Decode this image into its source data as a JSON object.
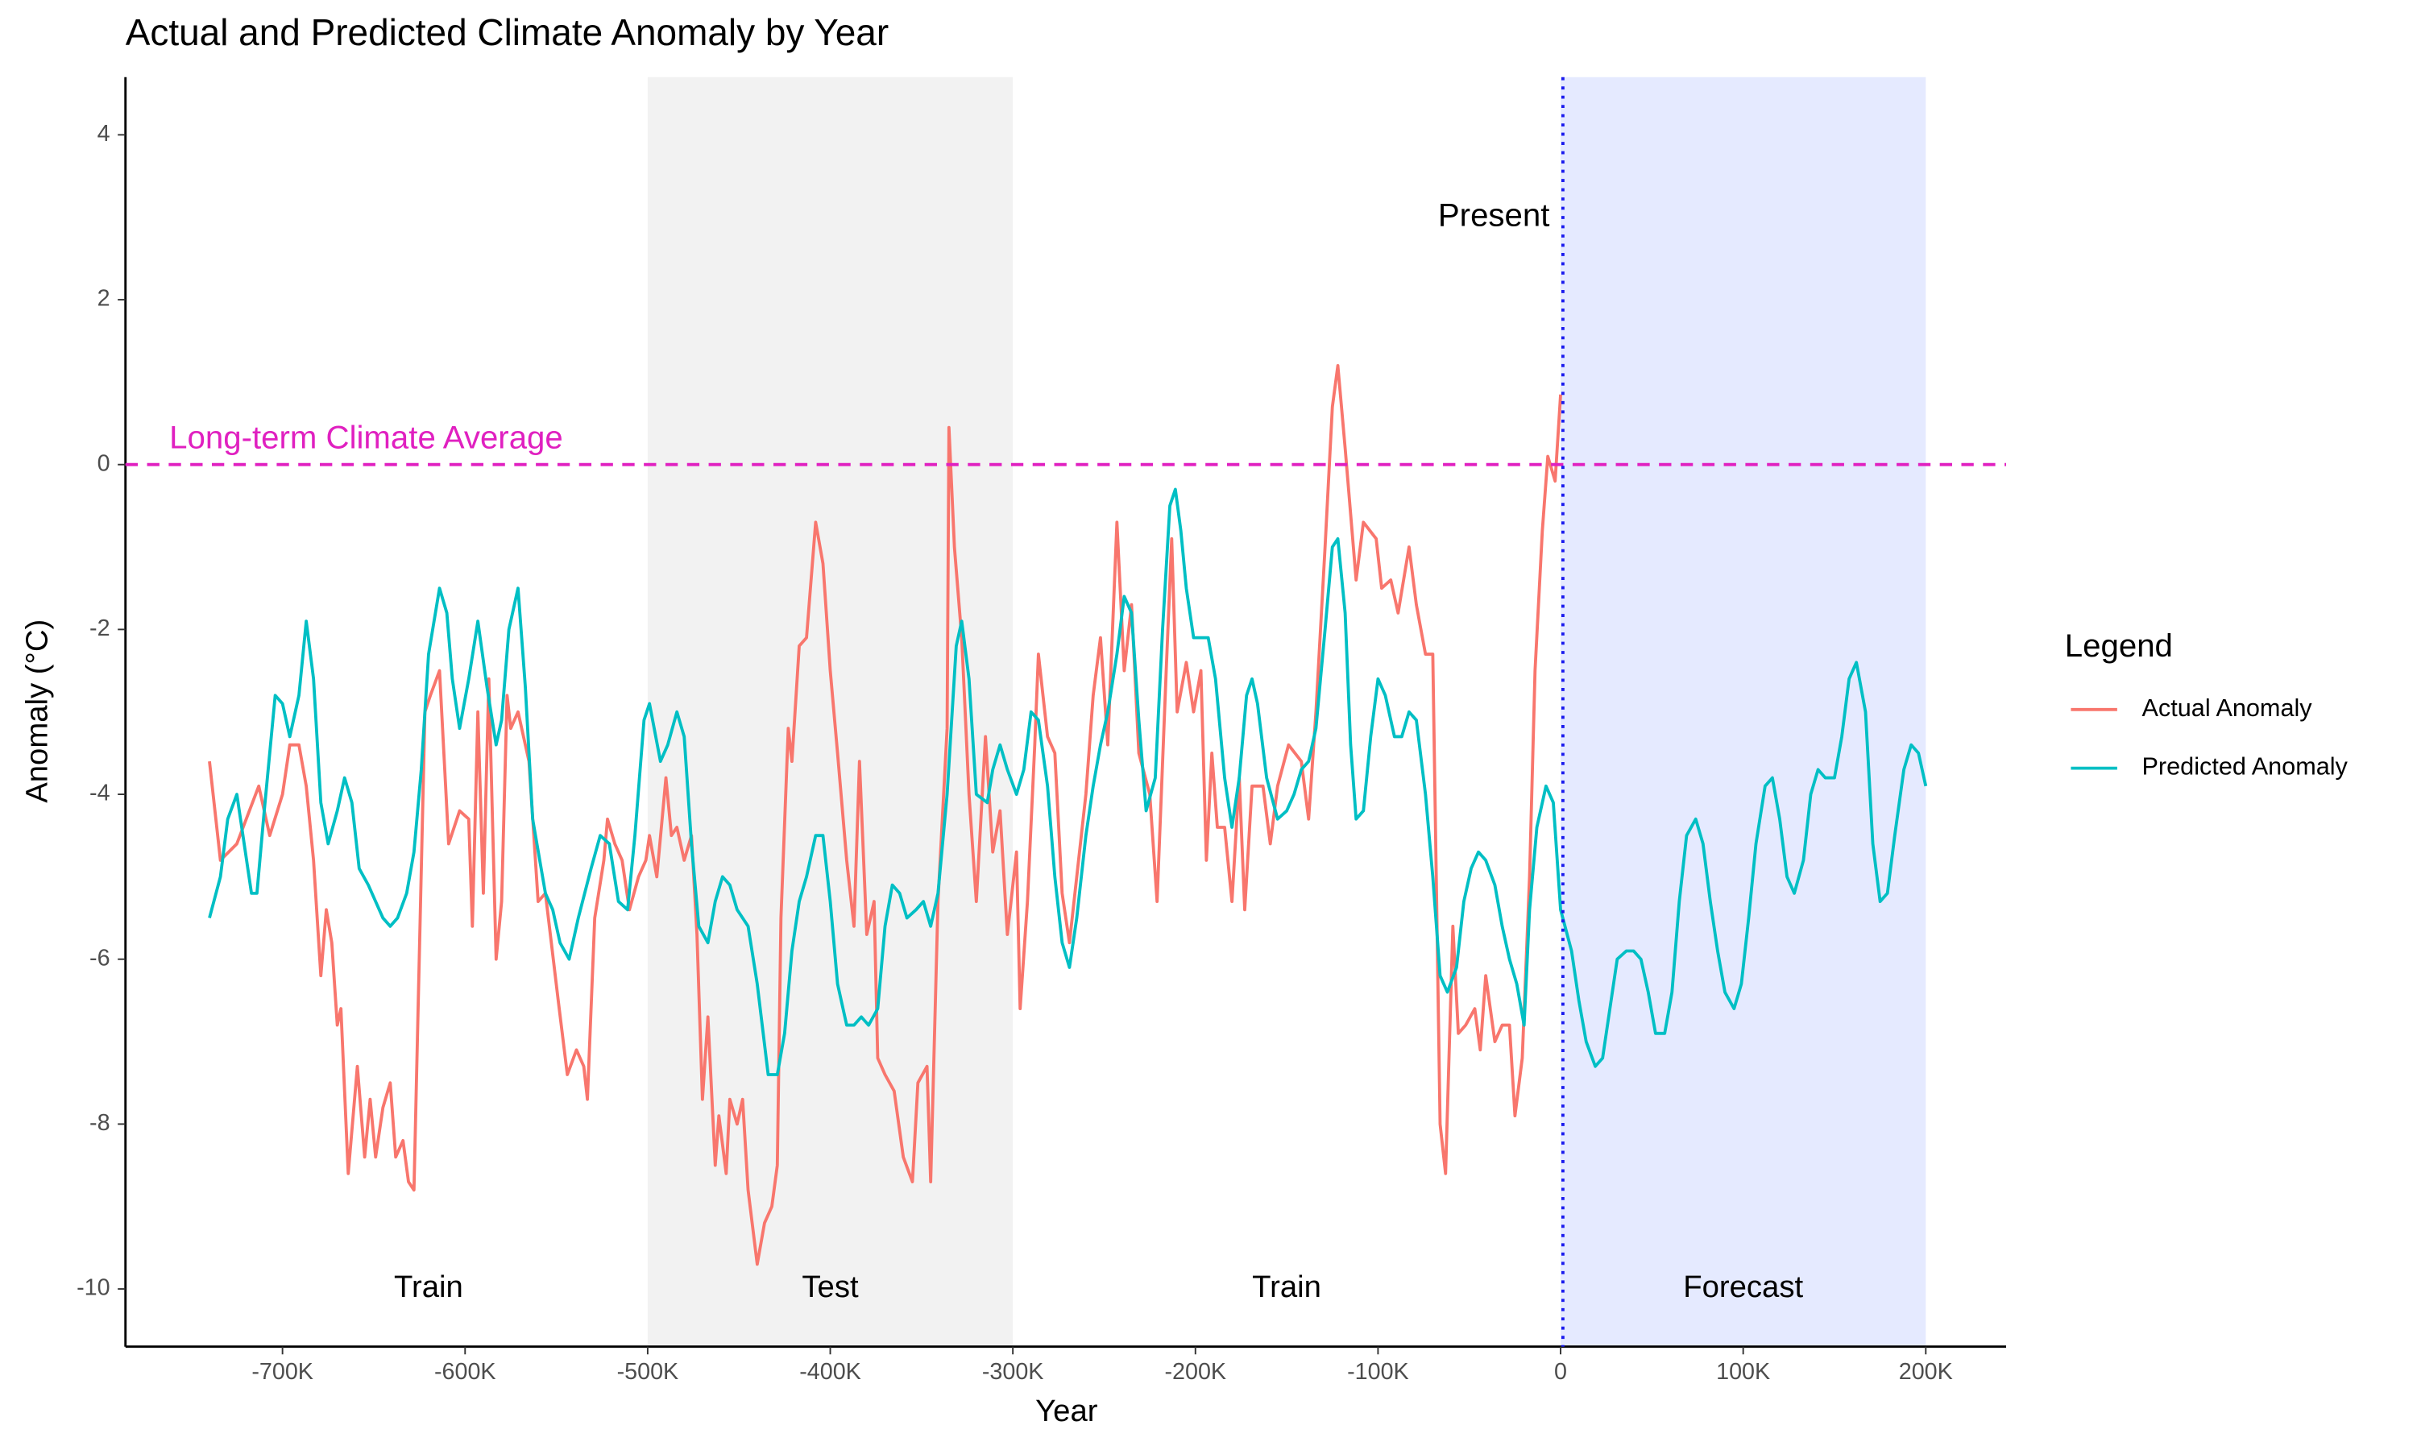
{
  "chart_data": {
    "type": "line",
    "title": "Actual and Predicted Climate Anomaly by Year",
    "x_label": "Year",
    "y_label": "Anomaly (°C)",
    "xlim": [
      -786000,
      244000
    ],
    "ylim": [
      -10.7,
      4.7
    ],
    "xticks": [
      {
        "value": -700000,
        "label": "-700K"
      },
      {
        "value": -600000,
        "label": "-600K"
      },
      {
        "value": -500000,
        "label": "-500K"
      },
      {
        "value": -400000,
        "label": "-400K"
      },
      {
        "value": -300000,
        "label": "-300K"
      },
      {
        "value": -200000,
        "label": "-200K"
      },
      {
        "value": -100000,
        "label": "-100K"
      },
      0,
      {
        "value": 100000,
        "label": "100K"
      },
      {
        "value": 200000,
        "label": "200K"
      }
    ],
    "yticks": [
      -10,
      -8,
      -6,
      -4,
      -2,
      0,
      2,
      4
    ],
    "grid": false,
    "legend": {
      "title": "Legend",
      "position": "right"
    },
    "spans": [
      {
        "from": -500000,
        "to": -300000,
        "color": "#f2f2f2"
      },
      {
        "from": 0,
        "to": 200000,
        "color": "#e5eaff"
      }
    ],
    "hline": {
      "y": 0,
      "color": "#e020c0",
      "label": "Long-term Climate Average",
      "label_x": -762000,
      "label_y": 0.3
    },
    "vline": {
      "x": 0,
      "color": "#1a1aee",
      "label": "Present",
      "label_x": -6000,
      "label_y": 3.0
    },
    "annotations": [
      {
        "text": "Train",
        "x": -620000,
        "y": -10
      },
      {
        "text": "Test",
        "x": -400000,
        "y": -10
      },
      {
        "text": "Train",
        "x": -150000,
        "y": -10
      },
      {
        "text": "Forecast",
        "x": 100000,
        "y": -10
      }
    ],
    "series": [
      {
        "name": "Actual Anomaly",
        "color": "#F8766D",
        "x": [
          -740000,
          -734000,
          -725000,
          -713000,
          -707000,
          -700000,
          -696000,
          -691000,
          -687000,
          -683000,
          -679000,
          -676000,
          -673000,
          -670000,
          -668000,
          -664000,
          -659000,
          -655000,
          -652000,
          -649000,
          -645000,
          -641000,
          -638000,
          -634000,
          -631000,
          -628000,
          -622000,
          -619000,
          -614000,
          -609000,
          -603000,
          -598000,
          -596000,
          -593000,
          -590000,
          -587000,
          -583000,
          -580000,
          -577000,
          -575000,
          -571000,
          -565000,
          -560000,
          -556000,
          -549000,
          -544000,
          -539000,
          -535000,
          -533000,
          -529000,
          -524000,
          -522000,
          -518000,
          -514000,
          -510000,
          -505000,
          -501000,
          -499000,
          -495000,
          -490000,
          -487000,
          -484000,
          -480000,
          -476000,
          -473000,
          -470000,
          -467000,
          -463000,
          -461000,
          -457000,
          -455000,
          -451000,
          -448000,
          -445000,
          -440000,
          -436000,
          -432000,
          -429000,
          -427000,
          -423000,
          -421000,
          -417000,
          -413000,
          -408000,
          -404000,
          -400000,
          -396000,
          -391000,
          -387000,
          -384000,
          -380000,
          -376000,
          -374000,
          -370000,
          -365000,
          -360000,
          -355000,
          -352000,
          -347000,
          -345000,
          -341000,
          -336000,
          -335000,
          -332000,
          -328000,
          -324000,
          -320000,
          -315000,
          -311000,
          -307000,
          -303000,
          -298000,
          -296000,
          -292000,
          -288000,
          -286000,
          -281000,
          -277000,
          -273000,
          -269000,
          -260000,
          -256000,
          -252000,
          -248000,
          -243000,
          -239000,
          -235000,
          -231000,
          -225000,
          -221000,
          -216000,
          -213000,
          -210000,
          -205000,
          -201000,
          -197000,
          -194000,
          -191000,
          -188000,
          -184000,
          -180000,
          -176000,
          -173000,
          -169000,
          -163000,
          -159000,
          -155000,
          -149000,
          -142000,
          -138000,
          -134000,
          -129000,
          -125000,
          -122000,
          -118000,
          -115000,
          -112000,
          -108000,
          -101000,
          -98000,
          -93000,
          -89000,
          -83000,
          -79000,
          -74000,
          -70000,
          -66000,
          -63000,
          -59000,
          -56000,
          -52000,
          -47000,
          -44000,
          -41000,
          -36000,
          -32000,
          -28000,
          -25000,
          -21000,
          -17000,
          -14000,
          -10000,
          -7000,
          -3000,
          0
        ],
        "values": [
          -3.6,
          -4.8,
          -4.6,
          -3.9,
          -4.5,
          -4.0,
          -3.4,
          -3.4,
          -3.9,
          -4.8,
          -6.2,
          -5.4,
          -5.8,
          -6.8,
          -6.6,
          -8.6,
          -7.3,
          -8.4,
          -7.7,
          -8.4,
          -7.8,
          -7.5,
          -8.4,
          -8.2,
          -8.7,
          -8.8,
          -3.0,
          -2.8,
          -2.5,
          -4.6,
          -4.2,
          -4.3,
          -5.6,
          -3.0,
          -5.2,
          -2.6,
          -6.0,
          -5.3,
          -2.8,
          -3.2,
          -3.0,
          -3.6,
          -5.3,
          -5.2,
          -6.5,
          -7.4,
          -7.1,
          -7.3,
          -7.7,
          -5.5,
          -4.8,
          -4.3,
          -4.6,
          -4.8,
          -5.4,
          -5.0,
          -4.8,
          -4.5,
          -5.0,
          -3.8,
          -4.5,
          -4.4,
          -4.8,
          -4.5,
          -5.7,
          -7.7,
          -6.7,
          -8.5,
          -7.9,
          -8.6,
          -7.7,
          -8.0,
          -7.7,
          -8.8,
          -9.7,
          -9.2,
          -9.0,
          -8.5,
          -5.5,
          -3.2,
          -3.6,
          -2.2,
          -2.1,
          -0.7,
          -1.2,
          -2.5,
          -3.5,
          -4.8,
          -5.6,
          -3.6,
          -5.7,
          -5.3,
          -7.2,
          -7.4,
          -7.6,
          -8.4,
          -8.7,
          -7.5,
          -7.3,
          -8.7,
          -5.3,
          -3.2,
          0.45,
          -1.0,
          -2.1,
          -4.0,
          -5.3,
          -3.3,
          -4.7,
          -4.2,
          -5.7,
          -4.7,
          -6.6,
          -5.3,
          -3.4,
          -2.3,
          -3.3,
          -3.5,
          -5.2,
          -5.8,
          -4.0,
          -2.8,
          -2.1,
          -3.4,
          -0.7,
          -2.5,
          -1.7,
          -3.5,
          -4.0,
          -5.3,
          -2.5,
          -0.9,
          -3.0,
          -2.4,
          -3.0,
          -2.5,
          -4.8,
          -3.5,
          -4.4,
          -4.4,
          -5.3,
          -3.8,
          -5.4,
          -3.9,
          -3.9,
          -4.6,
          -3.9,
          -3.4,
          -3.6,
          -4.3,
          -3.0,
          -1.0,
          0.7,
          1.2,
          0.2,
          -0.6,
          -1.4,
          -0.7,
          -0.9,
          -1.5,
          -1.4,
          -1.8,
          -1.0,
          -1.7,
          -2.3,
          -2.3,
          -8.0,
          -8.6,
          -5.6,
          -6.9,
          -6.8,
          -6.6,
          -7.1,
          -6.2,
          -7.0,
          -6.8,
          -6.8,
          -7.9,
          -7.2,
          -5.0,
          -2.5,
          -0.8,
          0.1,
          -0.2,
          0.85
        ]
      },
      {
        "name": "Predicted Anomaly",
        "color": "#00BFC4",
        "x": [
          -740000,
          -734000,
          -730000,
          -725000,
          -721000,
          -717000,
          -714000,
          -710000,
          -704000,
          -700000,
          -696000,
          -691000,
          -687000,
          -683000,
          -679000,
          -675000,
          -670000,
          -666000,
          -662000,
          -658000,
          -653000,
          -649000,
          -645000,
          -641000,
          -637000,
          -632000,
          -628000,
          -624000,
          -620000,
          -614000,
          -610000,
          -607000,
          -603000,
          -598000,
          -593000,
          -588000,
          -583000,
          -580000,
          -576000,
          -571000,
          -567000,
          -563000,
          -556000,
          -552000,
          -548000,
          -543000,
          -538000,
          -531000,
          -526000,
          -521000,
          -516000,
          -511000,
          -507000,
          -502000,
          -499000,
          -493000,
          -489000,
          -484000,
          -480000,
          -476000,
          -472000,
          -467000,
          -463000,
          -459000,
          -455000,
          -451000,
          -445000,
          -440000,
          -434000,
          -429000,
          -425000,
          -421000,
          -417000,
          -413000,
          -408000,
          -404000,
          -400000,
          -396000,
          -391000,
          -387000,
          -383000,
          -379000,
          -374000,
          -370000,
          -366000,
          -362000,
          -358000,
          -353000,
          -349000,
          -345000,
          -341000,
          -336000,
          -331000,
          -328000,
          -324000,
          -320000,
          -314000,
          -311000,
          -307000,
          -303000,
          -298000,
          -294000,
          -290000,
          -286000,
          -281000,
          -277000,
          -273000,
          -269000,
          -265000,
          -260000,
          -256000,
          -252000,
          -248000,
          -243000,
          -239000,
          -235000,
          -231000,
          -227000,
          -222000,
          -218000,
          -214000,
          -211000,
          -208000,
          -205000,
          -201000,
          -197000,
          -193000,
          -189000,
          -184000,
          -180000,
          -176000,
          -172000,
          -169000,
          -166000,
          -161000,
          -155000,
          -150000,
          -146000,
          -142000,
          -138000,
          -134000,
          -129000,
          -125000,
          -122000,
          -118000,
          -115000,
          -112000,
          -108000,
          -104000,
          -100000,
          -96000,
          -91000,
          -87000,
          -83000,
          -79000,
          -74000,
          -70000,
          -66000,
          -62000,
          -57000,
          -53000,
          -49000,
          -45000,
          -41000,
          -36000,
          -32000,
          -28000,
          -24000,
          -20000,
          -17000,
          -13000,
          -8000,
          -4000,
          0,
          6000,
          10000,
          14000,
          19000,
          23000,
          27000,
          31000,
          36000,
          40000,
          44000,
          48000,
          52000,
          57000,
          61000,
          65000,
          69000,
          74000,
          78000,
          82000,
          86000,
          90000,
          95000,
          99000,
          103000,
          107000,
          112000,
          116000,
          120000,
          124000,
          128000,
          133000,
          137000,
          141000,
          145000,
          150000,
          154000,
          158000,
          162000,
          167000,
          171000,
          175000,
          179000,
          183000,
          188000,
          192000,
          196000,
          200000
        ],
        "values": [
          -5.5,
          -5.0,
          -4.3,
          -4.0,
          -4.6,
          -5.2,
          -5.2,
          -4.2,
          -2.8,
          -2.9,
          -3.3,
          -2.8,
          -1.9,
          -2.6,
          -4.1,
          -4.6,
          -4.2,
          -3.8,
          -4.1,
          -4.9,
          -5.1,
          -5.3,
          -5.5,
          -5.6,
          -5.5,
          -5.2,
          -4.7,
          -3.7,
          -2.3,
          -1.5,
          -1.8,
          -2.6,
          -3.2,
          -2.6,
          -1.9,
          -2.7,
          -3.4,
          -3.1,
          -2.0,
          -1.5,
          -2.7,
          -4.3,
          -5.2,
          -5.4,
          -5.8,
          -6.0,
          -5.5,
          -4.9,
          -4.5,
          -4.6,
          -5.3,
          -5.4,
          -4.5,
          -3.1,
          -2.9,
          -3.6,
          -3.4,
          -3.0,
          -3.3,
          -4.6,
          -5.6,
          -5.8,
          -5.3,
          -5.0,
          -5.1,
          -5.4,
          -5.6,
          -6.3,
          -7.4,
          -7.4,
          -6.9,
          -5.9,
          -5.3,
          -5.0,
          -4.5,
          -4.5,
          -5.3,
          -6.3,
          -6.8,
          -6.8,
          -6.7,
          -6.8,
          -6.6,
          -5.6,
          -5.1,
          -5.2,
          -5.5,
          -5.4,
          -5.3,
          -5.6,
          -5.2,
          -4.0,
          -2.2,
          -1.9,
          -2.6,
          -4.0,
          -4.1,
          -3.7,
          -3.4,
          -3.7,
          -4.0,
          -3.7,
          -3.0,
          -3.1,
          -3.9,
          -5.0,
          -5.8,
          -6.1,
          -5.5,
          -4.5,
          -3.9,
          -3.4,
          -3.0,
          -2.3,
          -1.6,
          -1.8,
          -3.1,
          -4.2,
          -3.8,
          -2.0,
          -0.5,
          -0.3,
          -0.8,
          -1.5,
          -2.1,
          -2.1,
          -2.1,
          -2.6,
          -3.8,
          -4.4,
          -3.8,
          -2.8,
          -2.6,
          -2.9,
          -3.8,
          -4.3,
          -4.2,
          -4.0,
          -3.7,
          -3.6,
          -3.2,
          -2.0,
          -1.0,
          -0.9,
          -1.8,
          -3.4,
          -4.3,
          -4.2,
          -3.3,
          -2.6,
          -2.8,
          -3.3,
          -3.3,
          -3.0,
          -3.1,
          -4.0,
          -5.0,
          -6.2,
          -6.4,
          -6.1,
          -5.3,
          -4.9,
          -4.7,
          -4.8,
          -5.1,
          -5.6,
          -6.0,
          -6.3,
          -6.8,
          -5.4,
          -4.4,
          -3.9,
          -4.1,
          -5.4,
          -5.9,
          -6.5,
          -7.0,
          -7.3,
          -7.2,
          -6.6,
          -6.0,
          -5.9,
          -5.9,
          -6.0,
          -6.4,
          -6.9,
          -6.9,
          -6.4,
          -5.3,
          -4.5,
          -4.3,
          -4.6,
          -5.3,
          -5.9,
          -6.4,
          -6.6,
          -6.3,
          -5.5,
          -4.6,
          -3.9,
          -3.8,
          -4.3,
          -5.0,
          -5.2,
          -4.8,
          -4.0,
          -3.7,
          -3.8,
          -3.8,
          -3.3,
          -2.6,
          -2.4,
          -3.0,
          -4.6,
          -5.3,
          -5.2,
          -4.5,
          -3.7,
          -3.4,
          -3.5,
          -3.9
        ]
      }
    ]
  }
}
